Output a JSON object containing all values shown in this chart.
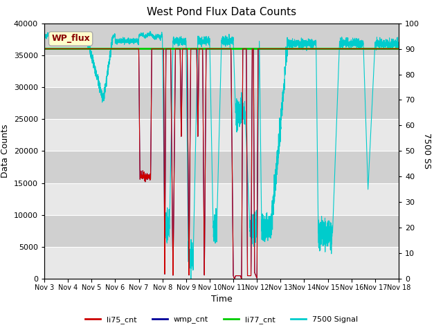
{
  "title": "West Pond Flux Data Counts",
  "xlabel": "Time",
  "ylabel_left": "Data Counts",
  "ylabel_right": "7500 SS",
  "xlim": [
    0,
    15
  ],
  "ylim_left": [
    0,
    40000
  ],
  "ylim_right": [
    0,
    100
  ],
  "bg_color_light": "#e8e8e8",
  "bg_color_dark": "#d0d0d0",
  "fig_bg": "#ffffff",
  "legend_colors": [
    "#cc0000",
    "#000099",
    "#00cc00",
    "#00cccc"
  ],
  "legend_labels": [
    "li75_cnt",
    "wmp_cnt",
    "li77_cnt",
    "7500 Signal"
  ],
  "wp_flux_box_color": "#ffffcc",
  "wp_flux_text_color": "#880000",
  "xtick_labels": [
    "Nov 3",
    "Nov 4",
    "Nov 5",
    "Nov 6",
    "Nov 7",
    "Nov 8",
    "Nov 9",
    "Nov 10",
    "Nov 11",
    "Nov 12",
    "Nov 13",
    "Nov 14",
    "Nov 15",
    "Nov 16",
    "Nov 17",
    "Nov 18"
  ],
  "yticks_left": [
    0,
    5000,
    10000,
    15000,
    20000,
    25000,
    30000,
    35000,
    40000
  ],
  "yticks_right": [
    0,
    10,
    20,
    30,
    40,
    50,
    60,
    70,
    80,
    90,
    100
  ],
  "li77_level": 36000,
  "cyan_base": 95,
  "li75_base": 36000
}
